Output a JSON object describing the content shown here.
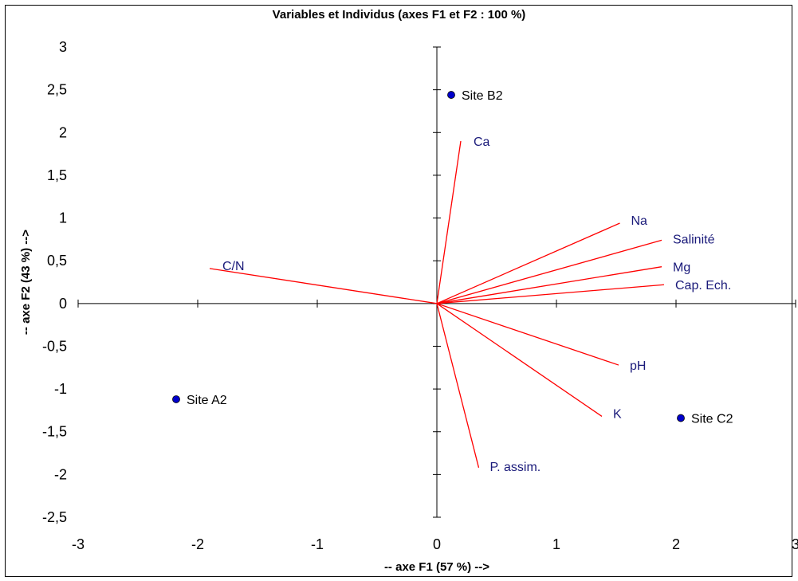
{
  "chart_data": {
    "type": "scatter",
    "title": "Variables et Individus (axes F1 et F2 : 100 %)",
    "xlabel": "-- axe F1 (57 %) -->",
    "ylabel": "-- axe F2 (43 %) -->",
    "xlim": [
      -3,
      3
    ],
    "ylim": [
      -2.5,
      3
    ],
    "x_ticks": [
      "-3",
      "-2",
      "-1",
      "0",
      "1",
      "2",
      "3"
    ],
    "y_ticks": [
      "3",
      "2,5",
      "2",
      "1,5",
      "1",
      "0,5",
      "0",
      "-0,5",
      "-1",
      "-1,5",
      "-2",
      "-2,5"
    ],
    "grid": false,
    "variable_color": "#ff0000",
    "variable_label_color": "#1a1a7a",
    "individual_color": "#0000cc",
    "variables": [
      {
        "label": "Ca",
        "x": 0.2,
        "y": 1.9
      },
      {
        "label": "C/N",
        "x": -1.9,
        "y": 0.41
      },
      {
        "label": "Na",
        "x": 1.53,
        "y": 0.94
      },
      {
        "label": "Salinité",
        "x": 1.88,
        "y": 0.74
      },
      {
        "label": "Mg",
        "x": 1.88,
        "y": 0.43
      },
      {
        "label": "Cap. Ech.",
        "x": 1.9,
        "y": 0.22
      },
      {
        "label": "pH",
        "x": 1.52,
        "y": -0.72
      },
      {
        "label": "K",
        "x": 1.38,
        "y": -1.32
      },
      {
        "label": "P. assim.",
        "x": 0.35,
        "y": -1.92
      }
    ],
    "individuals": [
      {
        "label": "Site B2",
        "x": 0.12,
        "y": 2.44
      },
      {
        "label": "Site A2",
        "x": -2.18,
        "y": -1.12
      },
      {
        "label": "Site C2",
        "x": 2.04,
        "y": -1.34
      }
    ]
  }
}
